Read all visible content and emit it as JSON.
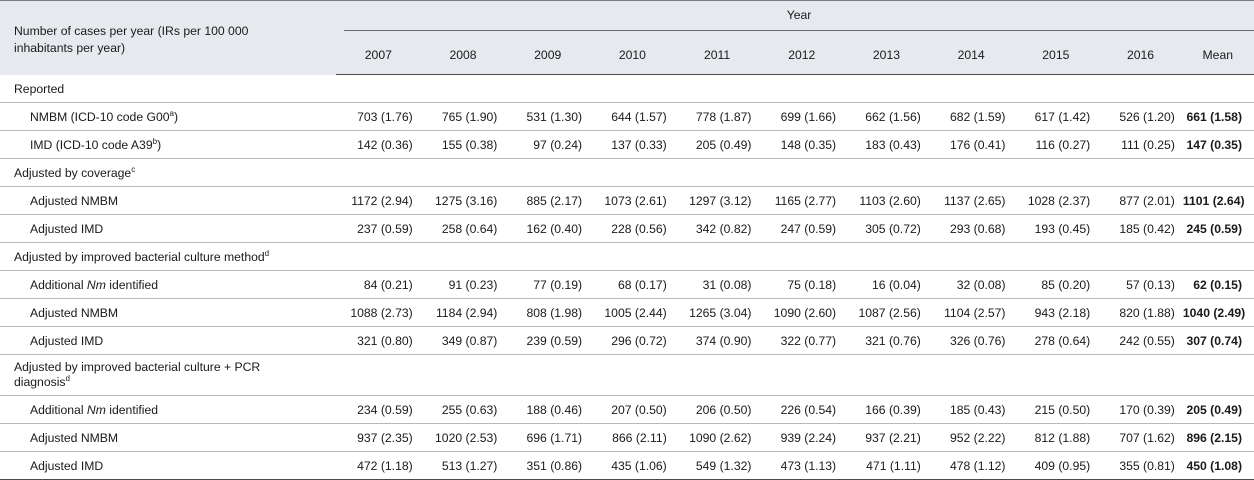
{
  "header": {
    "label_line1": "Number of cases per year (IRs per 100 000",
    "label_line2": "inhabitants per year)",
    "year_group": "Year",
    "years": [
      "2007",
      "2008",
      "2009",
      "2010",
      "2011",
      "2012",
      "2013",
      "2014",
      "2015",
      "2016"
    ],
    "mean": "Mean"
  },
  "sections": {
    "reported": {
      "title": "Reported",
      "rows": [
        {
          "label": "NMBM (ICD-10 code G00",
          "sup": "a",
          "label_end": ")",
          "values": [
            "703 (1.76)",
            "765 (1.90)",
            "531 (1.30)",
            "644 (1.57)",
            "778 (1.87)",
            "699 (1.66)",
            "662 (1.56)",
            "682 (1.59)",
            "617 (1.42)",
            "526 (1.20)"
          ],
          "mean": "661 (1.58)"
        },
        {
          "label": "IMD (ICD-10 code A39",
          "sup": "b",
          "label_end": ")",
          "values": [
            "142 (0.36)",
            "155 (0.38)",
            "97 (0.24)",
            "137 (0.33)",
            "205 (0.49)",
            "148 (0.35)",
            "183 (0.43)",
            "176 (0.41)",
            "116 (0.27)",
            "111 (0.25)"
          ],
          "mean": "147 (0.35)"
        }
      ]
    },
    "coverage": {
      "title": "Adjusted by coverage",
      "sup": "c",
      "rows": [
        {
          "label": "Adjusted NMBM",
          "values": [
            "1172 (2.94)",
            "1275 (3.16)",
            "885 (2.17)",
            "1073 (2.61)",
            "1297 (3.12)",
            "1165 (2.77)",
            "1103 (2.60)",
            "1137 (2.65)",
            "1028 (2.37)",
            "877 (2.01)"
          ],
          "mean": "1101 (2.64)"
        },
        {
          "label": "Adjusted IMD",
          "values": [
            "237 (0.59)",
            "258 (0.64)",
            "162 (0.40)",
            "228 (0.56)",
            "342 (0.82)",
            "247 (0.59)",
            "305 (0.72)",
            "293 (0.68)",
            "193 (0.45)",
            "185 (0.42)"
          ],
          "mean": "245 (0.59)"
        }
      ]
    },
    "culture": {
      "title": "Adjusted by improved bacterial culture method",
      "sup": "d",
      "rows": [
        {
          "label_pre": "Additional ",
          "label_italic": "Nm",
          "label_post": " identified",
          "values": [
            "84 (0.21)",
            "91 (0.23)",
            "77 (0.19)",
            "68 (0.17)",
            "31 (0.08)",
            "75 (0.18)",
            "16 (0.04)",
            "32 (0.08)",
            "85 (0.20)",
            "57 (0.13)"
          ],
          "mean": "62 (0.15)"
        },
        {
          "label": "Adjusted NMBM",
          "values": [
            "1088 (2.73)",
            "1184 (2.94)",
            "808 (1.98)",
            "1005 (2.44)",
            "1265 (3.04)",
            "1090 (2.60)",
            "1087 (2.56)",
            "1104 (2.57)",
            "943 (2.18)",
            "820 (1.88)"
          ],
          "mean": "1040 (2.49)"
        },
        {
          "label": "Adjusted IMD",
          "values": [
            "321 (0.80)",
            "349 (0.87)",
            "239 (0.59)",
            "296 (0.72)",
            "374 (0.90)",
            "322 (0.77)",
            "321 (0.76)",
            "326 (0.76)",
            "278 (0.64)",
            "242 (0.55)"
          ],
          "mean": "307 (0.74)"
        }
      ]
    },
    "culture_pcr": {
      "title_line1": "Adjusted by improved bacterial culture + PCR",
      "title_line2": "diagnosis",
      "sup": "d",
      "rows": [
        {
          "label_pre": "Additional ",
          "label_italic": "Nm",
          "label_post": " identified",
          "values": [
            "234 (0.59)",
            "255 (0.63)",
            "188 (0.46)",
            "207 (0.50)",
            "206 (0.50)",
            "226 (0.54)",
            "166 (0.39)",
            "185 (0.43)",
            "215 (0.50)",
            "170 (0.39)"
          ],
          "mean": "205 (0.49)"
        },
        {
          "label": "Adjusted NMBM",
          "values": [
            "937 (2.35)",
            "1020 (2.53)",
            "696 (1.71)",
            "866 (2.11)",
            "1090 (2.62)",
            "939 (2.24)",
            "937 (2.21)",
            "952 (2.22)",
            "812 (1.88)",
            "707 (1.62)"
          ],
          "mean": "896 (2.15)"
        },
        {
          "label": "Adjusted IMD",
          "values": [
            "472 (1.18)",
            "513 (1.27)",
            "351 (0.86)",
            "435 (1.06)",
            "549 (1.32)",
            "473 (1.13)",
            "471 (1.11)",
            "478 (1.12)",
            "409 (0.95)",
            "355 (0.81)"
          ],
          "mean": "450 (1.08)"
        }
      ]
    }
  }
}
